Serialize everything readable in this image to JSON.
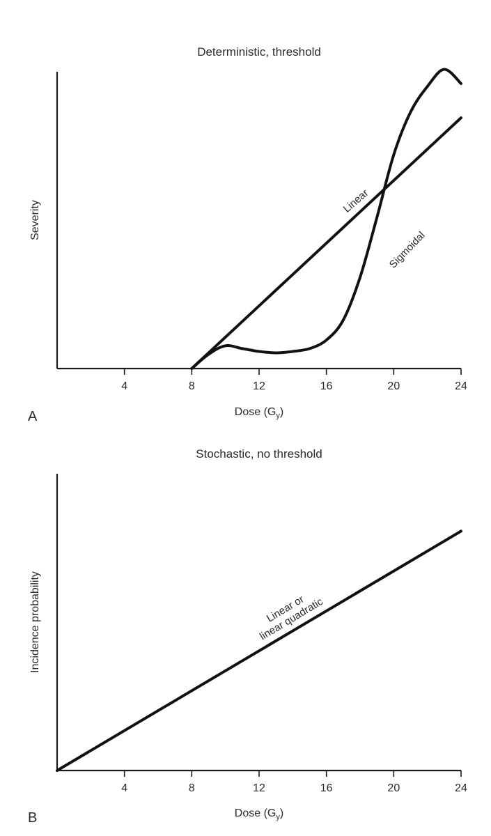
{
  "chart_data": [
    {
      "panel": "A",
      "type": "line",
      "title": "Deterministic, threshold",
      "xlabel": "Dose (G",
      "xlabel_sub": "y",
      "xlabel_close": ")",
      "ylabel": "Severity",
      "xlim": [
        0,
        24
      ],
      "xticks": [
        4,
        8,
        12,
        16,
        20,
        24
      ],
      "ylim": [
        0,
        100
      ],
      "grid": false,
      "series": [
        {
          "name": "Linear",
          "x": [
            8,
            24
          ],
          "y": [
            0,
            88
          ]
        },
        {
          "name": "Sigmoidal",
          "x": [
            8,
            9,
            10,
            11,
            12,
            13,
            14,
            15,
            16,
            17,
            18,
            19,
            20,
            21,
            22,
            23,
            24
          ],
          "y": [
            0,
            5,
            8,
            7,
            6,
            5.5,
            6,
            7,
            10,
            17,
            32,
            53,
            75,
            90,
            99,
            105,
            100
          ]
        }
      ]
    },
    {
      "panel": "B",
      "type": "line",
      "title": "Stochastic, no threshold",
      "xlabel": "Dose (G",
      "xlabel_sub": "y",
      "xlabel_close": ")",
      "ylabel": "Incidence probability",
      "xlim": [
        0,
        24
      ],
      "xticks": [
        4,
        8,
        12,
        16,
        20,
        24
      ],
      "ylim": [
        0,
        100
      ],
      "grid": false,
      "series": [
        {
          "name": "Linear or linear quadratic",
          "x": [
            0,
            24
          ],
          "y": [
            0,
            84
          ]
        }
      ],
      "annotation_lines": [
        "Linear or",
        "linear quadratic"
      ]
    }
  ]
}
